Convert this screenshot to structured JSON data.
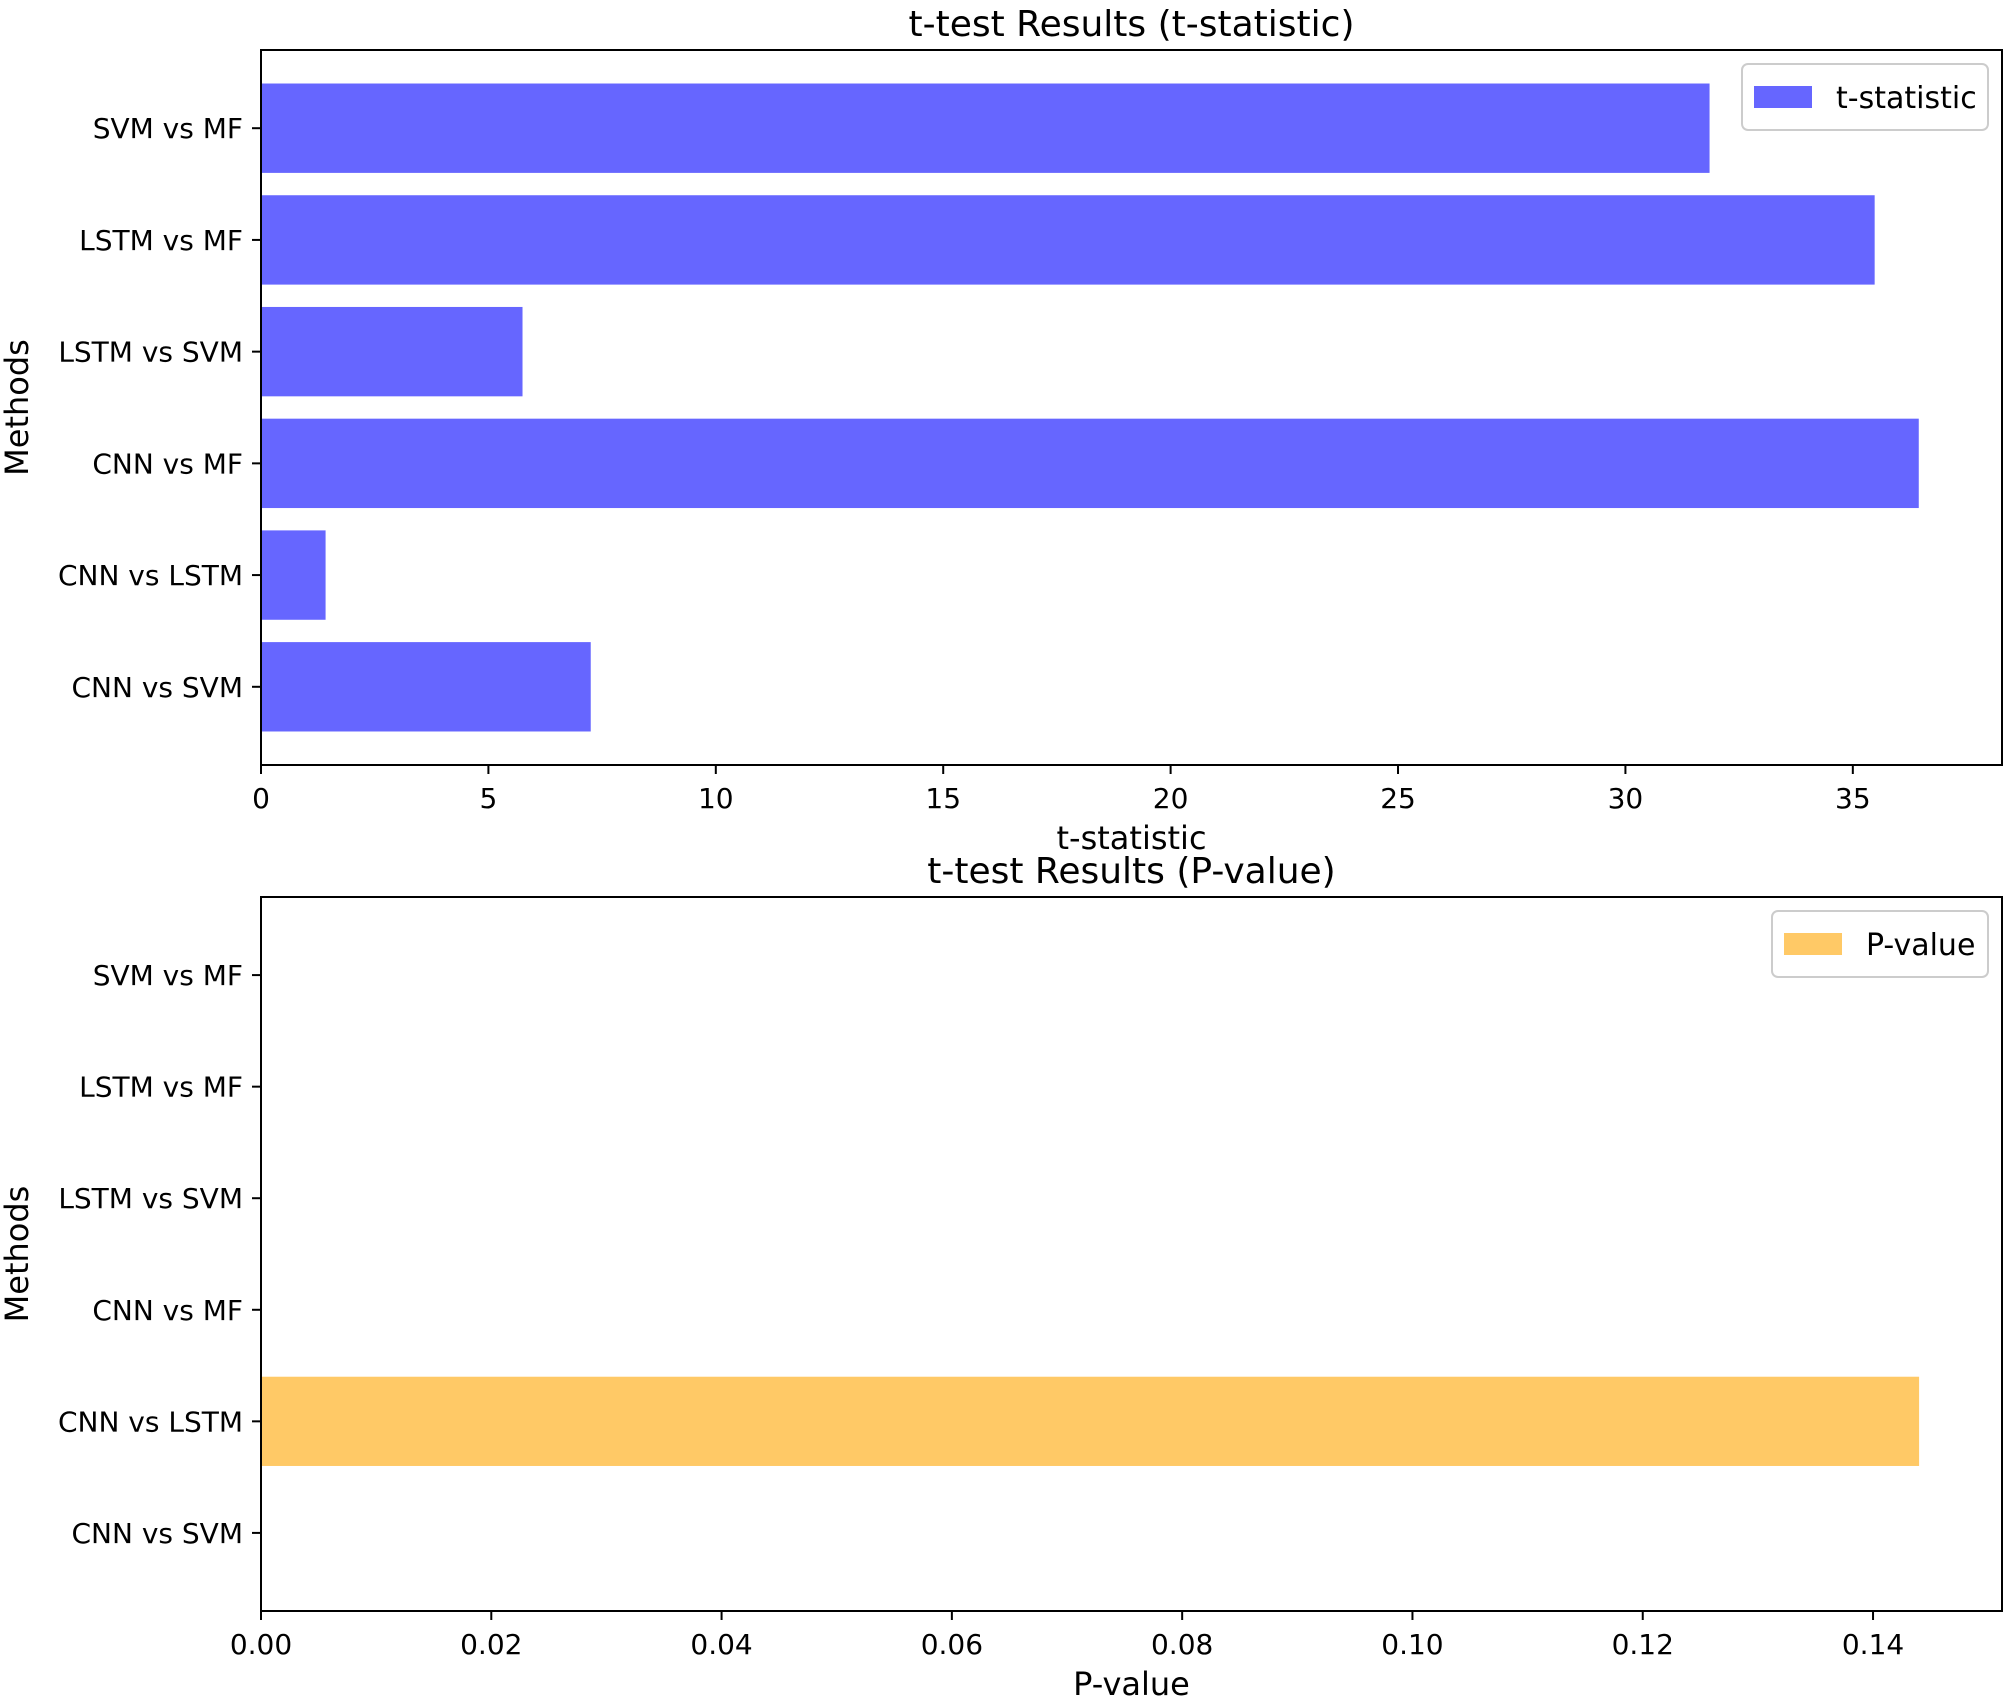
{
  "chart_data": [
    {
      "type": "bar",
      "orientation": "horizontal",
      "title": "t-test Results (t-statistic)",
      "xlabel": "t-statistic",
      "ylabel": "Methods",
      "categories": [
        "CNN vs SVM",
        "CNN vs LSTM",
        "CNN vs MF",
        "LSTM vs SVM",
        "LSTM vs MF",
        "SVM vs MF"
      ],
      "series": [
        {
          "name": "t-statistic",
          "values": [
            7.25,
            1.42,
            36.45,
            5.75,
            35.48,
            31.85
          ]
        }
      ],
      "xlim": [
        0,
        38.28
      ],
      "xticks": [
        0,
        5,
        10,
        15,
        20,
        25,
        30,
        35
      ],
      "xtick_labels": [
        "0",
        "5",
        "10",
        "15",
        "20",
        "25",
        "30",
        "35"
      ],
      "color": "#6666ff",
      "legend": {
        "label": "t-statistic",
        "placement": "top-right"
      },
      "grid": false
    },
    {
      "type": "bar",
      "orientation": "horizontal",
      "title": "t-test Results (P-value)",
      "xlabel": "P-value",
      "ylabel": "Methods",
      "categories": [
        "CNN vs SVM",
        "CNN vs LSTM",
        "CNN vs MF",
        "LSTM vs SVM",
        "LSTM vs MF",
        "SVM vs MF"
      ],
      "series": [
        {
          "name": "P-value",
          "values": [
            0.0,
            0.144,
            0.0,
            0.0,
            0.0,
            0.0
          ]
        }
      ],
      "xlim": [
        0,
        0.1512
      ],
      "xticks": [
        0,
        0.02,
        0.04,
        0.06,
        0.08,
        0.1,
        0.12,
        0.14
      ],
      "xtick_labels": [
        "0.00",
        "0.02",
        "0.04",
        "0.06",
        "0.08",
        "0.10",
        "0.12",
        "0.14"
      ],
      "color": "#ffc966",
      "legend": {
        "label": "P-value",
        "placement": "top-right"
      },
      "grid": false
    }
  ]
}
